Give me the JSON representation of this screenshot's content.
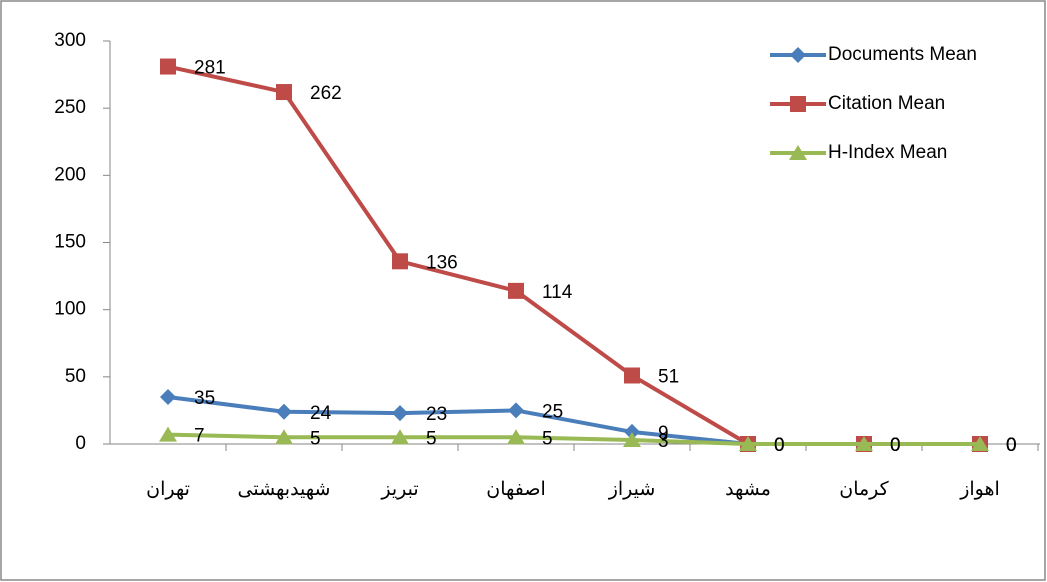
{
  "chart_data": {
    "type": "line",
    "categories": [
      "تهران",
      "شهیدبهشتی",
      "تبریز",
      "اصفهان",
      "شیراز",
      "مشهد",
      "کرمان",
      "اهواز"
    ],
    "series": [
      {
        "name": "Documents Mean",
        "color": "#4a7ebb",
        "marker": "diamond",
        "values": [
          35,
          24,
          23,
          25,
          9,
          0,
          0,
          0
        ]
      },
      {
        "name": "Citation Mean",
        "color": "#be4b48",
        "marker": "square",
        "values": [
          281,
          262,
          136,
          114,
          51,
          0,
          0,
          0
        ]
      },
      {
        "name": "H-Index Mean",
        "color": "#98b954",
        "marker": "triangle",
        "values": [
          7,
          5,
          5,
          5,
          3,
          0,
          0,
          0
        ]
      }
    ],
    "ylim": [
      0,
      300
    ],
    "yticks": [
      0,
      50,
      100,
      150,
      200,
      250,
      300
    ],
    "grid": false,
    "legend": "top-right"
  }
}
